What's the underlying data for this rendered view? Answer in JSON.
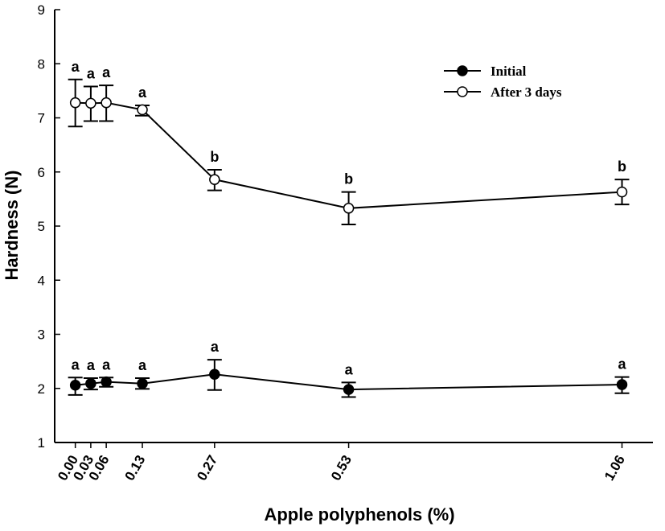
{
  "chart_data": {
    "type": "line",
    "xlabel": "Apple polyphenols (%)",
    "ylabel": "Hardness (N)",
    "ylim": [
      1,
      9
    ],
    "yticks": [
      "1",
      "2",
      "3",
      "4",
      "5",
      "6",
      "7",
      "8",
      "9"
    ],
    "x": [
      0.0,
      0.03,
      0.06,
      0.13,
      0.27,
      0.53,
      1.06
    ],
    "xtick_labels": [
      "0.00",
      "0.03",
      "0.06",
      "0.13",
      "0.27",
      "0.53",
      "1.06"
    ],
    "legend_position": "top-right",
    "series": [
      {
        "name": "Initial",
        "marker": "filled-circle",
        "values": [
          2.06,
          2.09,
          2.12,
          2.09,
          2.26,
          1.98,
          2.07
        ],
        "error_low": [
          1.88,
          1.98,
          2.03,
          1.99,
          1.97,
          1.84,
          1.91
        ],
        "error_high": [
          2.2,
          2.19,
          2.2,
          2.19,
          2.53,
          2.11,
          2.21
        ],
        "letters": [
          "a",
          "a",
          "a",
          "a",
          "a",
          "a",
          "a"
        ]
      },
      {
        "name": "After 3 days",
        "marker": "open-circle",
        "values": [
          7.28,
          7.27,
          7.28,
          7.15,
          5.86,
          5.33,
          5.63
        ],
        "error_low": [
          6.84,
          6.94,
          6.94,
          7.04,
          5.66,
          5.03,
          5.4
        ],
        "error_high": [
          7.71,
          7.58,
          7.6,
          7.23,
          6.04,
          5.63,
          5.86
        ],
        "letters": [
          "a",
          "a",
          "a",
          "a",
          "b",
          "b",
          "b"
        ]
      }
    ]
  }
}
